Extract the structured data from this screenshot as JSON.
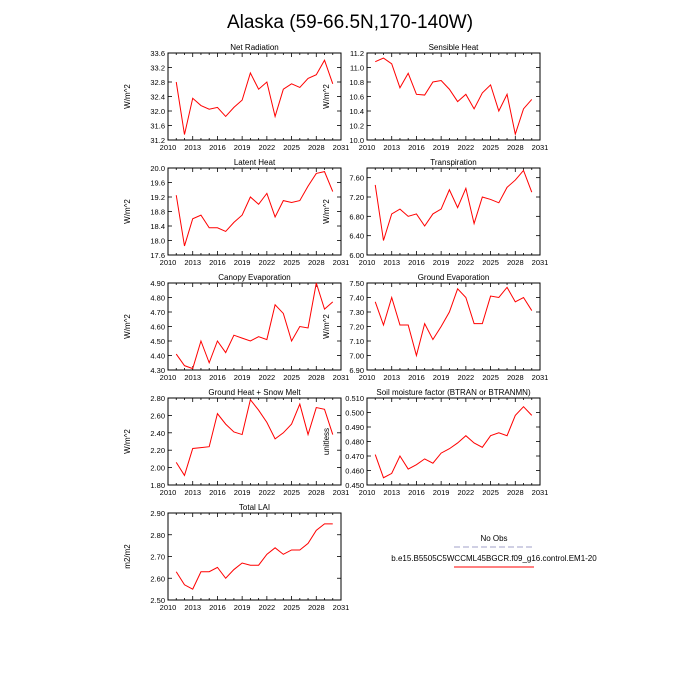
{
  "figure": {
    "title": "Alaska (59-66.5N,170-140W)"
  },
  "legend": {
    "obs_label": "No Obs",
    "model_label": "b.e15.B5505C5WCCML45BGCR.f09_g16.control.EM1-20",
    "obs_color": "#a0a0c8",
    "model_color": "#ff0000"
  },
  "chart_data": [
    {
      "type": "line",
      "title": "Net Radiation",
      "ylabel": "W/m^2",
      "xlim": [
        2010,
        2031
      ],
      "xticks": [
        2010,
        2013,
        2016,
        2019,
        2022,
        2025,
        2028,
        2031
      ],
      "ylim": [
        31.2,
        33.6
      ],
      "yticks": [
        "31.2",
        "31.6",
        "32.0",
        "32.4",
        "32.8",
        "33.2",
        "33.6"
      ],
      "x": [
        2011,
        2012,
        2013,
        2014,
        2015,
        2016,
        2017,
        2018,
        2019,
        2020,
        2021,
        2022,
        2023,
        2024,
        2025,
        2026,
        2027,
        2028,
        2029,
        2030
      ],
      "series": [
        {
          "values": [
            32.8,
            31.35,
            32.35,
            32.15,
            32.05,
            32.1,
            31.85,
            32.1,
            32.3,
            33.05,
            32.6,
            32.8,
            31.85,
            32.6,
            32.75,
            32.65,
            32.9,
            33.0,
            33.4,
            32.75
          ],
          "color": "#ff0000"
        }
      ]
    },
    {
      "type": "line",
      "title": "Sensible Heat",
      "ylabel": "W/m^2",
      "xlim": [
        2010,
        2031
      ],
      "xticks": [
        2010,
        2013,
        2016,
        2019,
        2022,
        2025,
        2028,
        2031
      ],
      "ylim": [
        10.0,
        11.2
      ],
      "yticks": [
        "10.0",
        "10.2",
        "10.4",
        "10.6",
        "10.8",
        "11.0",
        "11.2"
      ],
      "x": [
        2011,
        2012,
        2013,
        2014,
        2015,
        2016,
        2017,
        2018,
        2019,
        2020,
        2021,
        2022,
        2023,
        2024,
        2025,
        2026,
        2027,
        2028,
        2029,
        2030
      ],
      "series": [
        {
          "values": [
            11.08,
            11.13,
            11.05,
            10.72,
            10.92,
            10.63,
            10.62,
            10.8,
            10.82,
            10.7,
            10.53,
            10.63,
            10.43,
            10.65,
            10.76,
            10.4,
            10.63,
            10.08,
            10.43,
            10.56
          ],
          "color": "#ff0000"
        }
      ]
    },
    {
      "type": "line",
      "title": "Latent Heat",
      "ylabel": "W/m^2",
      "xlim": [
        2010,
        2031
      ],
      "xticks": [
        2010,
        2013,
        2016,
        2019,
        2022,
        2025,
        2028,
        2031
      ],
      "ylim": [
        17.6,
        20.0
      ],
      "yticks": [
        "17.6",
        "18.0",
        "18.4",
        "18.8",
        "19.2",
        "19.6",
        "20.0"
      ],
      "x": [
        2011,
        2012,
        2013,
        2014,
        2015,
        2016,
        2017,
        2018,
        2019,
        2020,
        2021,
        2022,
        2023,
        2024,
        2025,
        2026,
        2027,
        2028,
        2029,
        2030
      ],
      "series": [
        {
          "values": [
            19.25,
            17.85,
            18.6,
            18.7,
            18.35,
            18.35,
            18.25,
            18.5,
            18.7,
            19.2,
            19.0,
            19.3,
            18.65,
            19.1,
            19.05,
            19.1,
            19.5,
            19.85,
            19.9,
            19.35
          ],
          "color": "#ff0000"
        }
      ]
    },
    {
      "type": "line",
      "title": "Transpiration",
      "ylabel": "W/m^2",
      "xlim": [
        2010,
        2031
      ],
      "xticks": [
        2010,
        2013,
        2016,
        2019,
        2022,
        2025,
        2028,
        2031
      ],
      "ylim": [
        6.0,
        7.8
      ],
      "yticks": [
        "6.00",
        "6.40",
        "6.80",
        "7.20",
        "7.60"
      ],
      "yticks_at": [
        6.0,
        6.4,
        6.8,
        7.2,
        7.6
      ],
      "x": [
        2011,
        2012,
        2013,
        2014,
        2015,
        2016,
        2017,
        2018,
        2019,
        2020,
        2021,
        2022,
        2023,
        2024,
        2025,
        2026,
        2027,
        2028,
        2029,
        2030
      ],
      "series": [
        {
          "values": [
            7.45,
            6.3,
            6.85,
            6.95,
            6.8,
            6.85,
            6.6,
            6.85,
            6.95,
            7.35,
            6.98,
            7.38,
            6.65,
            7.2,
            7.15,
            7.08,
            7.4,
            7.55,
            7.75,
            7.3
          ],
          "color": "#ff0000"
        }
      ]
    },
    {
      "type": "line",
      "title": "Canopy Evaporation",
      "ylabel": "W/m^2",
      "xlim": [
        2010,
        2031
      ],
      "xticks": [
        2010,
        2013,
        2016,
        2019,
        2022,
        2025,
        2028,
        2031
      ],
      "ylim": [
        4.3,
        4.9
      ],
      "yticks": [
        "4.30",
        "4.40",
        "4.50",
        "4.60",
        "4.70",
        "4.80",
        "4.90"
      ],
      "x": [
        2011,
        2012,
        2013,
        2014,
        2015,
        2016,
        2017,
        2018,
        2019,
        2020,
        2021,
        2022,
        2023,
        2024,
        2025,
        2026,
        2027,
        2028,
        2029,
        2030
      ],
      "series": [
        {
          "values": [
            4.41,
            4.33,
            4.31,
            4.5,
            4.35,
            4.5,
            4.42,
            4.54,
            4.52,
            4.5,
            4.53,
            4.51,
            4.75,
            4.69,
            4.5,
            4.6,
            4.59,
            4.9,
            4.72,
            4.77
          ],
          "color": "#ff0000"
        }
      ]
    },
    {
      "type": "line",
      "title": "Ground Evaporation",
      "ylabel": "W/m^2",
      "xlim": [
        2010,
        2031
      ],
      "xticks": [
        2010,
        2013,
        2016,
        2019,
        2022,
        2025,
        2028,
        2031
      ],
      "ylim": [
        6.9,
        7.5
      ],
      "yticks": [
        "6.90",
        "7.00",
        "7.10",
        "7.20",
        "7.30",
        "7.40",
        "7.50"
      ],
      "x": [
        2011,
        2012,
        2013,
        2014,
        2015,
        2016,
        2017,
        2018,
        2019,
        2020,
        2021,
        2022,
        2023,
        2024,
        2025,
        2026,
        2027,
        2028,
        2029,
        2030
      ],
      "series": [
        {
          "values": [
            7.37,
            7.21,
            7.4,
            7.21,
            7.21,
            7.0,
            7.22,
            7.11,
            7.2,
            7.3,
            7.46,
            7.4,
            7.22,
            7.22,
            7.41,
            7.4,
            7.47,
            7.37,
            7.4,
            7.31
          ],
          "color": "#ff0000"
        }
      ]
    },
    {
      "type": "line",
      "title": "Ground Heat + Snow Melt",
      "ylabel": "W/m^2",
      "xlim": [
        2010,
        2031
      ],
      "xticks": [
        2010,
        2013,
        2016,
        2019,
        2022,
        2025,
        2028,
        2031
      ],
      "ylim": [
        1.8,
        2.8
      ],
      "yticks": [
        "1.80",
        "2.00",
        "2.20",
        "2.40",
        "2.60",
        "2.80"
      ],
      "x": [
        2011,
        2012,
        2013,
        2014,
        2015,
        2016,
        2017,
        2018,
        2019,
        2020,
        2021,
        2022,
        2023,
        2024,
        2025,
        2026,
        2027,
        2028,
        2029,
        2030
      ],
      "series": [
        {
          "values": [
            2.06,
            1.91,
            2.22,
            2.23,
            2.24,
            2.62,
            2.5,
            2.41,
            2.38,
            2.78,
            2.66,
            2.52,
            2.33,
            2.4,
            2.5,
            2.73,
            2.38,
            2.69,
            2.67,
            2.38
          ],
          "color": "#ff0000"
        }
      ]
    },
    {
      "type": "line",
      "title": "Soil moisture factor (BTRAN or BTRANMN)",
      "ylabel": "unitless",
      "xlim": [
        2010,
        2031
      ],
      "xticks": [
        2010,
        2013,
        2016,
        2019,
        2022,
        2025,
        2028,
        2031
      ],
      "ylim": [
        0.45,
        0.51
      ],
      "yticks": [
        "0.450",
        "0.460",
        "0.470",
        "0.480",
        "0.490",
        "0.500",
        "0.510"
      ],
      "x": [
        2011,
        2012,
        2013,
        2014,
        2015,
        2016,
        2017,
        2018,
        2019,
        2020,
        2021,
        2022,
        2023,
        2024,
        2025,
        2026,
        2027,
        2028,
        2029,
        2030
      ],
      "series": [
        {
          "values": [
            0.471,
            0.455,
            0.458,
            0.47,
            0.461,
            0.464,
            0.468,
            0.465,
            0.472,
            0.475,
            0.479,
            0.484,
            0.479,
            0.476,
            0.484,
            0.486,
            0.484,
            0.498,
            0.504,
            0.498
          ],
          "color": "#ff0000"
        }
      ]
    },
    {
      "type": "line",
      "title": "Total LAI",
      "ylabel": "m2/m2",
      "xlim": [
        2010,
        2031
      ],
      "xticks": [
        2010,
        2013,
        2016,
        2019,
        2022,
        2025,
        2028,
        2031
      ],
      "ylim": [
        2.5,
        2.9
      ],
      "yticks": [
        "2.50",
        "2.60",
        "2.70",
        "2.80",
        "2.90"
      ],
      "x": [
        2011,
        2012,
        2013,
        2014,
        2015,
        2016,
        2017,
        2018,
        2019,
        2020,
        2021,
        2022,
        2023,
        2024,
        2025,
        2026,
        2027,
        2028,
        2029,
        2030
      ],
      "series": [
        {
          "values": [
            2.63,
            2.57,
            2.55,
            2.63,
            2.63,
            2.65,
            2.6,
            2.64,
            2.67,
            2.66,
            2.66,
            2.71,
            2.74,
            2.71,
            2.73,
            2.73,
            2.76,
            2.82,
            2.85,
            2.85
          ],
          "color": "#ff0000"
        }
      ]
    }
  ]
}
